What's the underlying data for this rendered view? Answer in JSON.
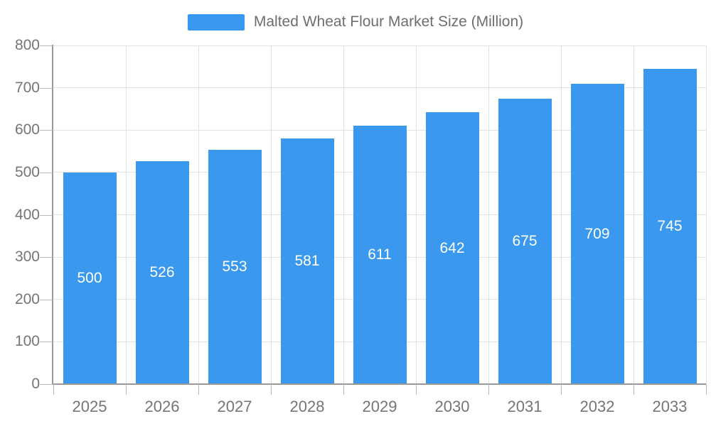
{
  "legend": {
    "label": "Malted Wheat Flour Market Size (Million)"
  },
  "chart_data": {
    "type": "bar",
    "title": "Malted Wheat Flour Market Size (Million)",
    "categories": [
      "2025",
      "2026",
      "2027",
      "2028",
      "2029",
      "2030",
      "2031",
      "2032",
      "2033"
    ],
    "values": [
      500,
      526,
      553,
      581,
      611,
      642,
      675,
      709,
      745
    ],
    "series": [
      {
        "name": "Malted Wheat Flour Market Size (Million)",
        "values": [
          500,
          526,
          553,
          581,
          611,
          642,
          675,
          709,
          745
        ]
      }
    ],
    "xlabel": "",
    "ylabel": "",
    "ylim": [
      0,
      800
    ],
    "ytick_step": 100,
    "yticks": [
      0,
      100,
      200,
      300,
      400,
      500,
      600,
      700,
      800
    ],
    "grid": true,
    "legend_position": "top",
    "value_labels": "inside-center",
    "colors": {
      "bar": "#3a99ee",
      "bar_value_text": "#ffffff",
      "axis_line": "#999999",
      "tick": "#b8b8b8",
      "gridline": "#e2e2e2",
      "axis_text": "#757575",
      "legend_text": "#6e6e6e",
      "background": "#ffffff"
    }
  }
}
